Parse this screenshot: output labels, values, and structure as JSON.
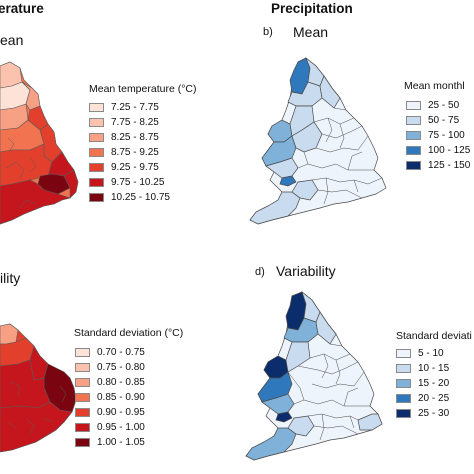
{
  "columns": {
    "temperature": "erature",
    "precipitation": "Precipitation"
  },
  "panels": {
    "temp_mean": {
      "title": "ean",
      "legend_title": "Mean temperature (°C)",
      "entries": [
        {
          "label": "7.25 - 7.75",
          "color": "#fde3d7"
        },
        {
          "label": "7.75 - 8.25",
          "color": "#fbc3ad"
        },
        {
          "label": "8.25 - 8.75",
          "color": "#f7a084"
        },
        {
          "label": "8.75 - 9.25",
          "color": "#f17350"
        },
        {
          "label": "9.25 - 9.75",
          "color": "#e2402c"
        },
        {
          "label": "9.75 - 10.25",
          "color": "#c4161c"
        },
        {
          "label": "10.25 - 10.75",
          "color": "#7a0410"
        }
      ]
    },
    "precip_mean": {
      "letter": "b)",
      "title": "Mean",
      "legend_title": "Mean monthl",
      "entries": [
        {
          "label": "25 - 50",
          "color": "#eef4fb"
        },
        {
          "label": "50 - 75",
          "color": "#c8dbef"
        },
        {
          "label": "75 - 100",
          "color": "#7fb1d9"
        },
        {
          "label": "100 - 125",
          "color": "#2f78bb"
        },
        {
          "label": "125 - 150",
          "color": "#0b2d6b"
        }
      ]
    },
    "temp_var": {
      "title": "ility",
      "legend_title": "Standard deviation (°C)",
      "entries": [
        {
          "label": "0.70 - 0.75",
          "color": "#fde3d7"
        },
        {
          "label": "0.75 - 0.80",
          "color": "#fbc3ad"
        },
        {
          "label": "0.80 - 0.85",
          "color": "#f7a084"
        },
        {
          "label": "0.85 - 0.90",
          "color": "#f17350"
        },
        {
          "label": "0.90 - 0.95",
          "color": "#e2402c"
        },
        {
          "label": "0.95 - 1.00",
          "color": "#c4161c"
        },
        {
          "label": "1.00 - 1.05",
          "color": "#7a0410"
        }
      ]
    },
    "precip_var": {
      "letter": "d)",
      "title": "Variability",
      "legend_title": "Standard deviati",
      "entries": [
        {
          "label": "5 - 10",
          "color": "#eef4fb"
        },
        {
          "label": "10 - 15",
          "color": "#c8dbef"
        },
        {
          "label": "15 - 20",
          "color": "#7fb1d9"
        },
        {
          "label": "20 - 25",
          "color": "#2f78bb"
        },
        {
          "label": "25 - 30",
          "color": "#0b2d6b"
        }
      ]
    }
  }
}
